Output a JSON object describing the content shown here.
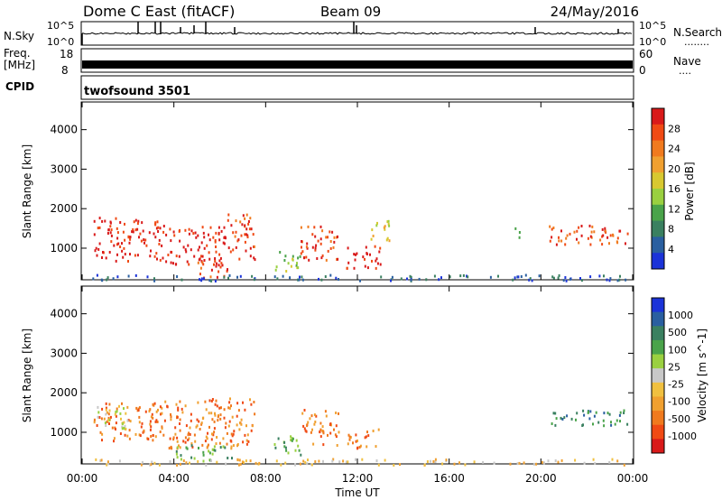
{
  "header": {
    "title": "Dome C East (fitACF)",
    "beam": "Beam 09",
    "date": "24/May/2016"
  },
  "sky_panel": {
    "left_label": "N.Sky",
    "left_ticks": [
      "10^5",
      "10^0"
    ],
    "right_label": "N.Search",
    "right_ticks": [
      "10^5",
      "10^0"
    ],
    "right_dots": "........"
  },
  "freq_panel": {
    "left_label_1": "Freq.",
    "left_label_2": "[MHz]",
    "left_ticks": [
      "18",
      "8"
    ],
    "right_label": "Nave",
    "right_ticks": [
      "60",
      "0"
    ],
    "right_dots": "...."
  },
  "cpid_panel": {
    "label": "CPID",
    "program": "twofsound 3501"
  },
  "chart_data": [
    {
      "type": "heatmap",
      "name": "power",
      "ylabel": "Slant Range [km]",
      "y_ticks": [
        1000,
        2000,
        3000,
        4000
      ],
      "ylim": [
        200,
        4700
      ],
      "x_ticks": [
        "00:00",
        "04:00",
        "08:00",
        "12:00",
        "16:00",
        "20:00",
        "00:00"
      ],
      "xlim_hours": [
        0,
        24
      ],
      "colorbar": {
        "label": "Power [dB]",
        "ticks": [
          "28",
          "24",
          "20",
          "16",
          "12",
          "8",
          "4"
        ],
        "colors": [
          "#d91a1a",
          "#f04a14",
          "#f07a1e",
          "#f0a030",
          "#d8c830",
          "#9ad040",
          "#4aa34a",
          "#3a8060",
          "#2a5fa0",
          "#1b33d8"
        ]
      },
      "patches": [
        {
          "h0": 0.5,
          "h1": 3.5,
          "r0": 700,
          "r1": 1800,
          "level": 0
        },
        {
          "h0": 3.5,
          "h1": 6.3,
          "r0": 600,
          "r1": 1600,
          "level": 0
        },
        {
          "h0": 6.3,
          "h1": 7.5,
          "r0": 700,
          "r1": 1900,
          "level": 1
        },
        {
          "h0": 5.0,
          "h1": 6.3,
          "r0": 250,
          "r1": 700,
          "level": 1
        },
        {
          "h0": 8.3,
          "h1": 9.5,
          "r0": 450,
          "r1": 950,
          "level": 5
        },
        {
          "h0": 9.5,
          "h1": 11.2,
          "r0": 700,
          "r1": 1600,
          "level": 1
        },
        {
          "h0": 11.5,
          "h1": 13.0,
          "r0": 500,
          "r1": 1100,
          "level": 0
        },
        {
          "h0": 12.5,
          "h1": 13.4,
          "r0": 1200,
          "r1": 1800,
          "level": 4
        },
        {
          "h0": 20.3,
          "h1": 23.8,
          "r0": 1100,
          "r1": 1600,
          "level": 1
        },
        {
          "h0": 18.8,
          "h1": 19.2,
          "r0": 1300,
          "r1": 1550,
          "level": 6
        },
        {
          "h0": 0.4,
          "h1": 23.8,
          "r0": 200,
          "r1": 350,
          "level": 8
        }
      ]
    },
    {
      "type": "heatmap",
      "name": "velocity",
      "ylabel": "Slant Range [km]",
      "y_ticks": [
        1000,
        2000,
        3000,
        4000
      ],
      "ylim": [
        200,
        4700
      ],
      "x_ticks": [
        "00:00",
        "04:00",
        "08:00",
        "12:00",
        "16:00",
        "20:00",
        "00:00"
      ],
      "xlim_hours": [
        0,
        24
      ],
      "xlabel": "Time UT",
      "colorbar": {
        "label": "Velocity [m s^-1]",
        "ticks": [
          "1000",
          "500",
          "100",
          "25",
          "-25",
          "-100",
          "-500",
          "-1000"
        ],
        "colors": [
          "#1b33d8",
          "#2a5fa0",
          "#3a8060",
          "#4aa34a",
          "#9ad040",
          "#c8c8c8",
          "#f0c040",
          "#f0a030",
          "#f07a1e",
          "#f04a14",
          "#d91a1a"
        ]
      },
      "patches": [
        {
          "h0": 0.5,
          "h1": 3.5,
          "r0": 800,
          "r1": 1800,
          "level": 8
        },
        {
          "h0": 0.5,
          "h1": 2.0,
          "r0": 1100,
          "r1": 1700,
          "level": 5
        },
        {
          "h0": 3.5,
          "h1": 7.5,
          "r0": 600,
          "r1": 1900,
          "level": 8
        },
        {
          "h0": 4.0,
          "h1": 6.5,
          "r0": 300,
          "r1": 700,
          "level": 3
        },
        {
          "h0": 8.3,
          "h1": 9.5,
          "r0": 400,
          "r1": 950,
          "level": 3
        },
        {
          "h0": 9.5,
          "h1": 11.2,
          "r0": 700,
          "r1": 1600,
          "level": 8
        },
        {
          "h0": 11.5,
          "h1": 13.0,
          "r0": 600,
          "r1": 1100,
          "level": 8
        },
        {
          "h0": 20.3,
          "h1": 23.8,
          "r0": 1200,
          "r1": 1600,
          "level": 2
        },
        {
          "h0": 0.4,
          "h1": 23.8,
          "r0": 200,
          "r1": 350,
          "level": 6
        }
      ]
    }
  ]
}
